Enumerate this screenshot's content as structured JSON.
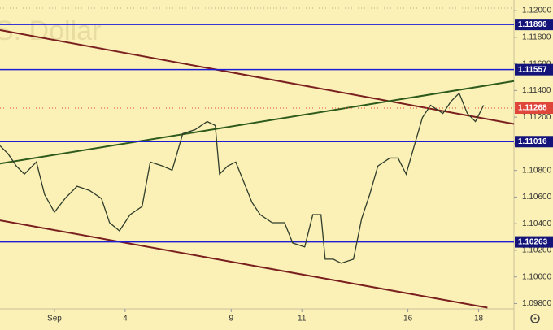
{
  "chart_data": {
    "type": "line",
    "watermark": "U.S. Dollar",
    "x": [
      -1.54,
      -1.31,
      -1.08,
      -0.85,
      -0.51,
      -0.28,
      0,
      0.3,
      0.64,
      0.99,
      1.33,
      1.56,
      1.84,
      2.14,
      2.48,
      2.71,
      3.06,
      3.33,
      3.63,
      3.98,
      4.32,
      4.55,
      4.67,
      4.9,
      5.13,
      5.36,
      5.59,
      5.82,
      6.16,
      6.51,
      6.74,
      7.08,
      7.31,
      7.54,
      7.66,
      7.89,
      8.11,
      8.46,
      8.69,
      8.92,
      9.15,
      9.49,
      9.72,
      9.95,
      10.18,
      10.41,
      10.64,
      10.99,
      11.22,
      11.45,
      11.68,
      11.91,
      12.14
    ],
    "series": [
      {
        "color": "#2f3d2a",
        "values": [
          1.10985,
          1.10924,
          1.10833,
          1.10772,
          1.10863,
          1.1062,
          1.10486,
          1.10589,
          1.10681,
          1.1065,
          1.10589,
          1.10407,
          1.10346,
          1.10468,
          1.10529,
          1.10863,
          1.10833,
          1.10802,
          1.11076,
          1.11106,
          1.11167,
          1.11137,
          1.10772,
          1.10833,
          1.10863,
          1.10711,
          1.10559,
          1.10468,
          1.10407,
          1.10407,
          1.10255,
          1.10225,
          1.10468,
          1.10468,
          1.10133,
          1.10133,
          1.10103,
          1.10133,
          1.10437,
          1.1062,
          1.10833,
          1.10893,
          1.10893,
          1.10772,
          1.10985,
          1.11197,
          1.11289,
          1.11228,
          1.11319,
          1.1138,
          1.11228,
          1.11167,
          1.11289
        ]
      }
    ],
    "trendlines": [
      {
        "color": "#7a1f1f",
        "x": [
          -1.54,
          13.0
        ],
        "values": [
          1.11854,
          1.11149
        ]
      },
      {
        "color": "#2e5a1c",
        "x": [
          -1.54,
          13.0
        ],
        "values": [
          1.10851,
          1.11471
        ]
      },
      {
        "color": "#7a1f1f",
        "x": [
          -1.54,
          12.25
        ],
        "values": [
          1.10425,
          1.09769
        ]
      }
    ],
    "levels": [
      1.11896,
      1.11557,
      1.11016,
      1.10263
    ],
    "level_color": "#1c1cd6",
    "last_price": 1.11268,
    "last_price_color": "#e0453a",
    "xlim": [
      -1.54,
      13.0
    ],
    "ylim": [
      1.0976,
      1.1208
    ],
    "xticks": [
      {
        "value": 0,
        "label": "Sep"
      },
      {
        "value": 2,
        "label": "4"
      },
      {
        "value": 5,
        "label": "9"
      },
      {
        "value": 7,
        "label": "11"
      },
      {
        "value": 10,
        "label": "16"
      },
      {
        "value": 12,
        "label": "18"
      }
    ],
    "yticks": [
      {
        "value": 1.098,
        "label": "1.09800"
      },
      {
        "value": 1.1,
        "label": "1.10000"
      },
      {
        "value": 1.102,
        "label": "1.10200"
      },
      {
        "value": 1.104,
        "label": "1.10400"
      },
      {
        "value": 1.106,
        "label": "1.10600"
      },
      {
        "value": 1.108,
        "label": "1.10800"
      },
      {
        "value": 1.11,
        "label": "1.11000"
      },
      {
        "value": 1.112,
        "label": "1.11200"
      },
      {
        "value": 1.114,
        "label": "1.11400"
      },
      {
        "value": 1.116,
        "label": "1.11600"
      },
      {
        "value": 1.118,
        "label": "1.11800"
      },
      {
        "value": 1.12,
        "label": "1.12000"
      }
    ]
  }
}
